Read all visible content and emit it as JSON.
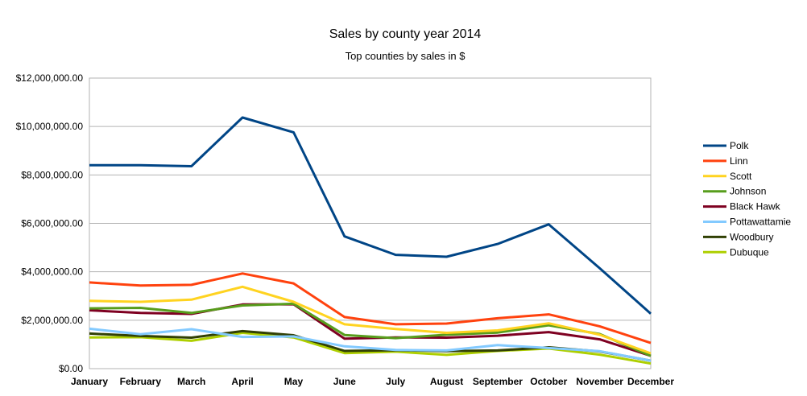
{
  "chart_data": {
    "type": "line",
    "title": "Sales by county year 2014",
    "subtitle": "Top counties by sales in $",
    "xlabel": "",
    "ylabel": "",
    "categories": [
      "January",
      "February",
      "March",
      "April",
      "May",
      "June",
      "July",
      "August",
      "September",
      "October",
      "November",
      "December"
    ],
    "ylim": [
      0,
      12000000
    ],
    "yticks": [
      {
        "value": 0,
        "label": "$0.00"
      },
      {
        "value": 2000000,
        "label": "$2,000,000.00"
      },
      {
        "value": 4000000,
        "label": "$4,000,000.00"
      },
      {
        "value": 6000000,
        "label": "$6,000,000.00"
      },
      {
        "value": 8000000,
        "label": "$8,000,000.00"
      },
      {
        "value": 10000000,
        "label": "$10,000,000.00"
      },
      {
        "value": 12000000,
        "label": "$12,000,000.00"
      }
    ],
    "grid": true,
    "legend": "right",
    "series": [
      {
        "name": "Polk",
        "color": "#004586",
        "values": [
          8400000,
          8400000,
          8360000,
          10370000,
          9760000,
          5460000,
          4700000,
          4620000,
          5150000,
          5960000,
          4150000,
          2270000
        ]
      },
      {
        "name": "Linn",
        "color": "#ff420e",
        "values": [
          3560000,
          3430000,
          3460000,
          3930000,
          3520000,
          2130000,
          1830000,
          1860000,
          2080000,
          2240000,
          1750000,
          1060000
        ]
      },
      {
        "name": "Scott",
        "color": "#ffd320",
        "values": [
          2800000,
          2760000,
          2850000,
          3380000,
          2760000,
          1830000,
          1640000,
          1480000,
          1580000,
          1870000,
          1400000,
          630000
        ]
      },
      {
        "name": "Johnson",
        "color": "#579d1c",
        "values": [
          2490000,
          2510000,
          2300000,
          2610000,
          2680000,
          1390000,
          1260000,
          1400000,
          1490000,
          1790000,
          1430000,
          530000
        ]
      },
      {
        "name": "Black Hawk",
        "color": "#7e0021",
        "values": [
          2410000,
          2300000,
          2260000,
          2650000,
          2660000,
          1240000,
          1290000,
          1280000,
          1360000,
          1510000,
          1210000,
          530000
        ]
      },
      {
        "name": "Pottawattamie",
        "color": "#83caff",
        "values": [
          1650000,
          1420000,
          1630000,
          1310000,
          1330000,
          920000,
          770000,
          750000,
          970000,
          850000,
          720000,
          330000
        ]
      },
      {
        "name": "Woodbury",
        "color": "#314004",
        "values": [
          1450000,
          1350000,
          1280000,
          1550000,
          1380000,
          730000,
          760000,
          720000,
          750000,
          880000,
          710000,
          330000
        ]
      },
      {
        "name": "Dubuque",
        "color": "#aecf00",
        "values": [
          1290000,
          1300000,
          1150000,
          1480000,
          1290000,
          640000,
          700000,
          570000,
          730000,
          830000,
          580000,
          210000
        ]
      }
    ]
  }
}
